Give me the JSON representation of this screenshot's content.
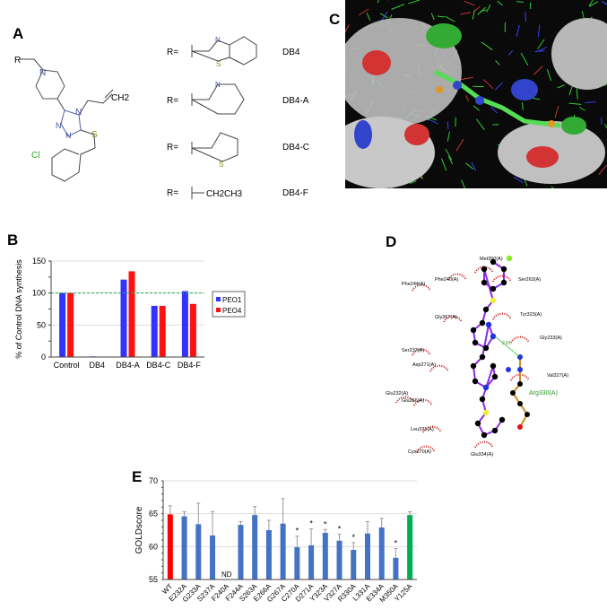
{
  "panels": {
    "a": "A",
    "b": "B",
    "c": "C",
    "d": "D",
    "e": "E"
  },
  "structure_a": {
    "core_labels": {
      "r": "R",
      "n_pip": "N",
      "n4": "N",
      "n1": "N",
      "n2": "N",
      "s": "S",
      "cl": "Cl",
      "ch2": "CH2"
    },
    "r_prefix": "R=",
    "substituents": [
      {
        "name": "DB4",
        "atoms": [
          "N",
          "S"
        ]
      },
      {
        "name": "DB4-A",
        "atoms": [
          "N"
        ]
      },
      {
        "name": "DB4-C",
        "atoms": [
          "S"
        ]
      },
      {
        "name": "DB4-F",
        "formula": "CH2CH3"
      }
    ]
  },
  "interaction_d": {
    "residues": [
      "Met350(A)",
      "Phe240(A)",
      "Ser263(A)",
      "Phe244(A)",
      "Tyr323(A)",
      "Gly267(A)",
      "Gly233(A)",
      "Ser237(A)",
      "Val327(A)",
      "Asp271(A)",
      "Glu232(A)",
      "Glu266(A)",
      "Leu331(A)",
      "Cys270(A)",
      "Glu334(A)"
    ],
    "hbond_residue": "Arg330(A)",
    "hbond_distance": "2.81",
    "colors": {
      "bond": "#8a2be2",
      "arg_bond": "#cc8a1a",
      "hydrophobic": "#cc1111",
      "hbond_label": "#229922"
    }
  },
  "chart_data": [
    {
      "id": "B",
      "type": "bar",
      "ylabel": "% of Control DNA synthesis",
      "categories": [
        "Control",
        "DB4",
        "DB4-A",
        "DB4-C",
        "DB4-F"
      ],
      "series": [
        {
          "name": "PEO1",
          "color": "#3333ff",
          "values": [
            100,
            1,
            121,
            80,
            103
          ]
        },
        {
          "name": "PEO4",
          "color": "#ff1111",
          "values": [
            100,
            0,
            134,
            80,
            83
          ]
        }
      ],
      "ylim": [
        0,
        150
      ],
      "yticks": [
        0,
        50,
        100,
        150
      ],
      "reference_line": {
        "value": 100,
        "color": "#22aa55",
        "style": "dashed"
      },
      "grid": true,
      "legend": "right"
    },
    {
      "id": "E",
      "type": "bar",
      "ylabel": "GOLDscore",
      "categories": [
        "WT",
        "E232A",
        "G233A",
        "S237A",
        "F240A",
        "F244A",
        "S263A",
        "E266A",
        "G267A",
        "C270A",
        "D271A",
        "Y323A",
        "V327A",
        "R330A",
        "L331A",
        "E334A",
        "M350A",
        "Y125A"
      ],
      "values": [
        64.9,
        64.6,
        63.4,
        61.7,
        null,
        63.3,
        64.8,
        62.5,
        63.5,
        59.9,
        60.2,
        62.1,
        60.9,
        59.5,
        62.0,
        62.9,
        58.3,
        64.8
      ],
      "errors": [
        1.3,
        0.7,
        3.2,
        3.6,
        null,
        0.5,
        1.3,
        1.5,
        3.8,
        1.7,
        2.5,
        0.5,
        1.0,
        1.1,
        1.8,
        1.4,
        1.4,
        0.5
      ],
      "significant": [
        false,
        false,
        false,
        false,
        false,
        false,
        false,
        false,
        false,
        true,
        true,
        true,
        true,
        true,
        false,
        false,
        true,
        false
      ],
      "significance_mark": "*",
      "annotations": [
        {
          "category": "F240A",
          "text": "ND"
        }
      ],
      "colors": {
        "WT": "#ff0000",
        "Y125A": "#00b050",
        "default": "#4472c4"
      },
      "ylim": [
        55,
        70
      ],
      "yticks": [
        55,
        60,
        65,
        70
      ],
      "grid": true
    }
  ]
}
